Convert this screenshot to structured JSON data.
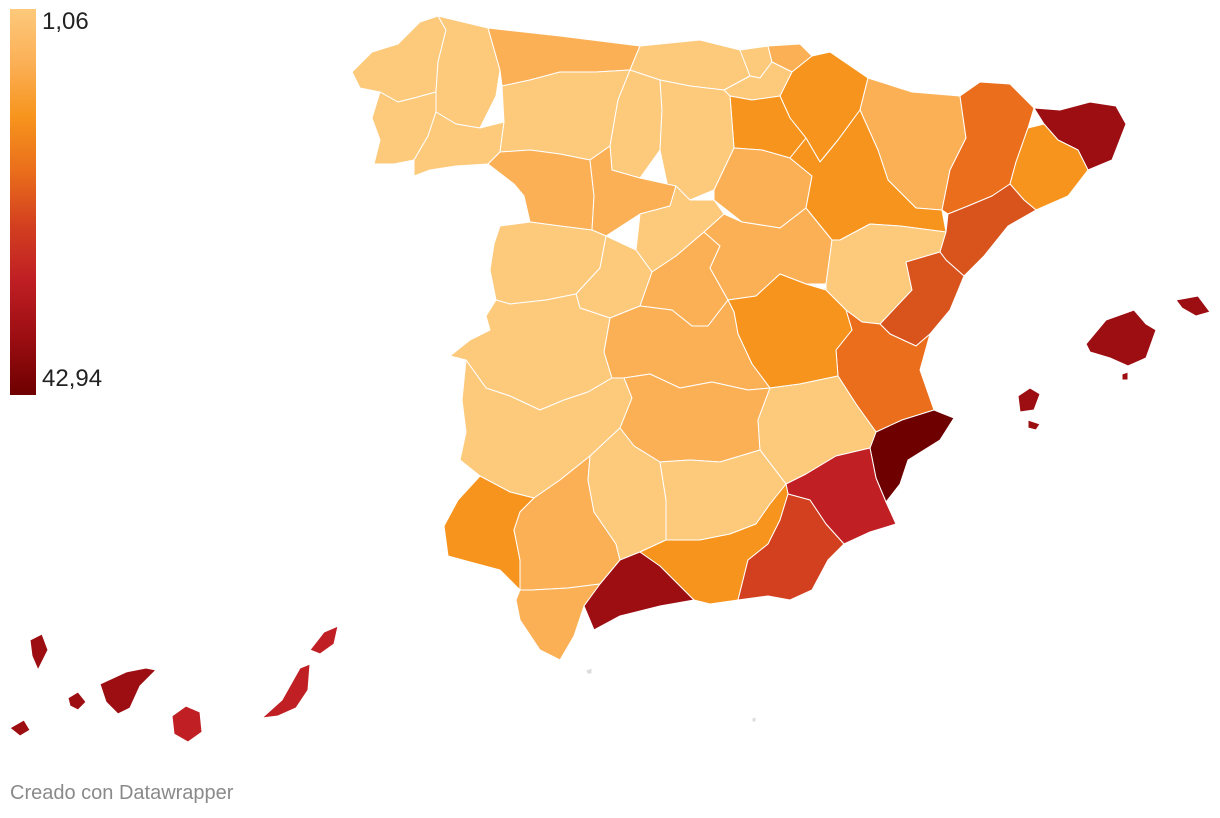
{
  "legend": {
    "min_label": "1,06",
    "max_label": "42,94",
    "min_value": 1.06,
    "max_value": 42.94,
    "gradient": [
      "#fdc97b",
      "#fbb056",
      "#f7941d",
      "#ea6e1b",
      "#d3401f",
      "#c01f24",
      "#9c0e12",
      "#6e0000"
    ]
  },
  "map": {
    "type": "choropleth",
    "regions": [
      {
        "name": "A Coruña",
        "color": "#fdc97b"
      },
      {
        "name": "Lugo",
        "color": "#fdc97b"
      },
      {
        "name": "Pontevedra",
        "color": "#fdc97b"
      },
      {
        "name": "Ourense",
        "color": "#fdc97b"
      },
      {
        "name": "Asturias",
        "color": "#fbb056"
      },
      {
        "name": "Cantabria",
        "color": "#fdc97b"
      },
      {
        "name": "Bizkaia",
        "color": "#fdc97b"
      },
      {
        "name": "Gipuzkoa",
        "color": "#fbb056"
      },
      {
        "name": "Álava",
        "color": "#fdc97b"
      },
      {
        "name": "Navarra",
        "color": "#f7941d"
      },
      {
        "name": "La Rioja",
        "color": "#f7941d"
      },
      {
        "name": "León",
        "color": "#fdc97b"
      },
      {
        "name": "Palencia",
        "color": "#fdc97b"
      },
      {
        "name": "Burgos",
        "color": "#fdc97b"
      },
      {
        "name": "Zamora",
        "color": "#fbb056"
      },
      {
        "name": "Valladolid",
        "color": "#fbb056"
      },
      {
        "name": "Soria",
        "color": "#fbb056"
      },
      {
        "name": "Segovia",
        "color": "#fdc97b"
      },
      {
        "name": "Salamanca",
        "color": "#fdc97b"
      },
      {
        "name": "Ávila",
        "color": "#fdc97b"
      },
      {
        "name": "Madrid",
        "color": "#fbb056"
      },
      {
        "name": "Guadalajara",
        "color": "#fbb056"
      },
      {
        "name": "Huesca",
        "color": "#fbb056"
      },
      {
        "name": "Zaragoza",
        "color": "#f7941d"
      },
      {
        "name": "Teruel",
        "color": "#fdc97b"
      },
      {
        "name": "Lleida",
        "color": "#ea6e1b"
      },
      {
        "name": "Girona",
        "color": "#9c0e12"
      },
      {
        "name": "Barcelona",
        "color": "#f7941d"
      },
      {
        "name": "Tarragona",
        "color": "#d9531c"
      },
      {
        "name": "Castellón",
        "color": "#d9531c"
      },
      {
        "name": "Valencia",
        "color": "#ea6e1b"
      },
      {
        "name": "Alicante",
        "color": "#6e0000"
      },
      {
        "name": "Cuenca",
        "color": "#f7941d"
      },
      {
        "name": "Cáceres",
        "color": "#fdc97b"
      },
      {
        "name": "Toledo",
        "color": "#fbb056"
      },
      {
        "name": "Badajoz",
        "color": "#fdc97b"
      },
      {
        "name": "Ciudad Real",
        "color": "#fbb056"
      },
      {
        "name": "Albacete",
        "color": "#fdc97b"
      },
      {
        "name": "Murcia",
        "color": "#c01f24"
      },
      {
        "name": "Huelva",
        "color": "#f7941d"
      },
      {
        "name": "Sevilla",
        "color": "#fbb056"
      },
      {
        "name": "Córdoba",
        "color": "#fdc97b"
      },
      {
        "name": "Jaén",
        "color": "#fdc97b"
      },
      {
        "name": "Cádiz",
        "color": "#fbb056"
      },
      {
        "name": "Málaga",
        "color": "#9c0e12"
      },
      {
        "name": "Granada",
        "color": "#f7941d"
      },
      {
        "name": "Almería",
        "color": "#d3401f"
      },
      {
        "name": "Illes Balears",
        "color": "#9c0e12"
      },
      {
        "name": "Santa Cruz de Tenerife",
        "color": "#9c0e12"
      },
      {
        "name": "Las Palmas",
        "color": "#c01f24"
      },
      {
        "name": "Ceuta",
        "color": "#dddddd"
      },
      {
        "name": "Melilla",
        "color": "#dddddd"
      }
    ]
  },
  "footer": {
    "credit": "Creado con Datawrapper"
  }
}
